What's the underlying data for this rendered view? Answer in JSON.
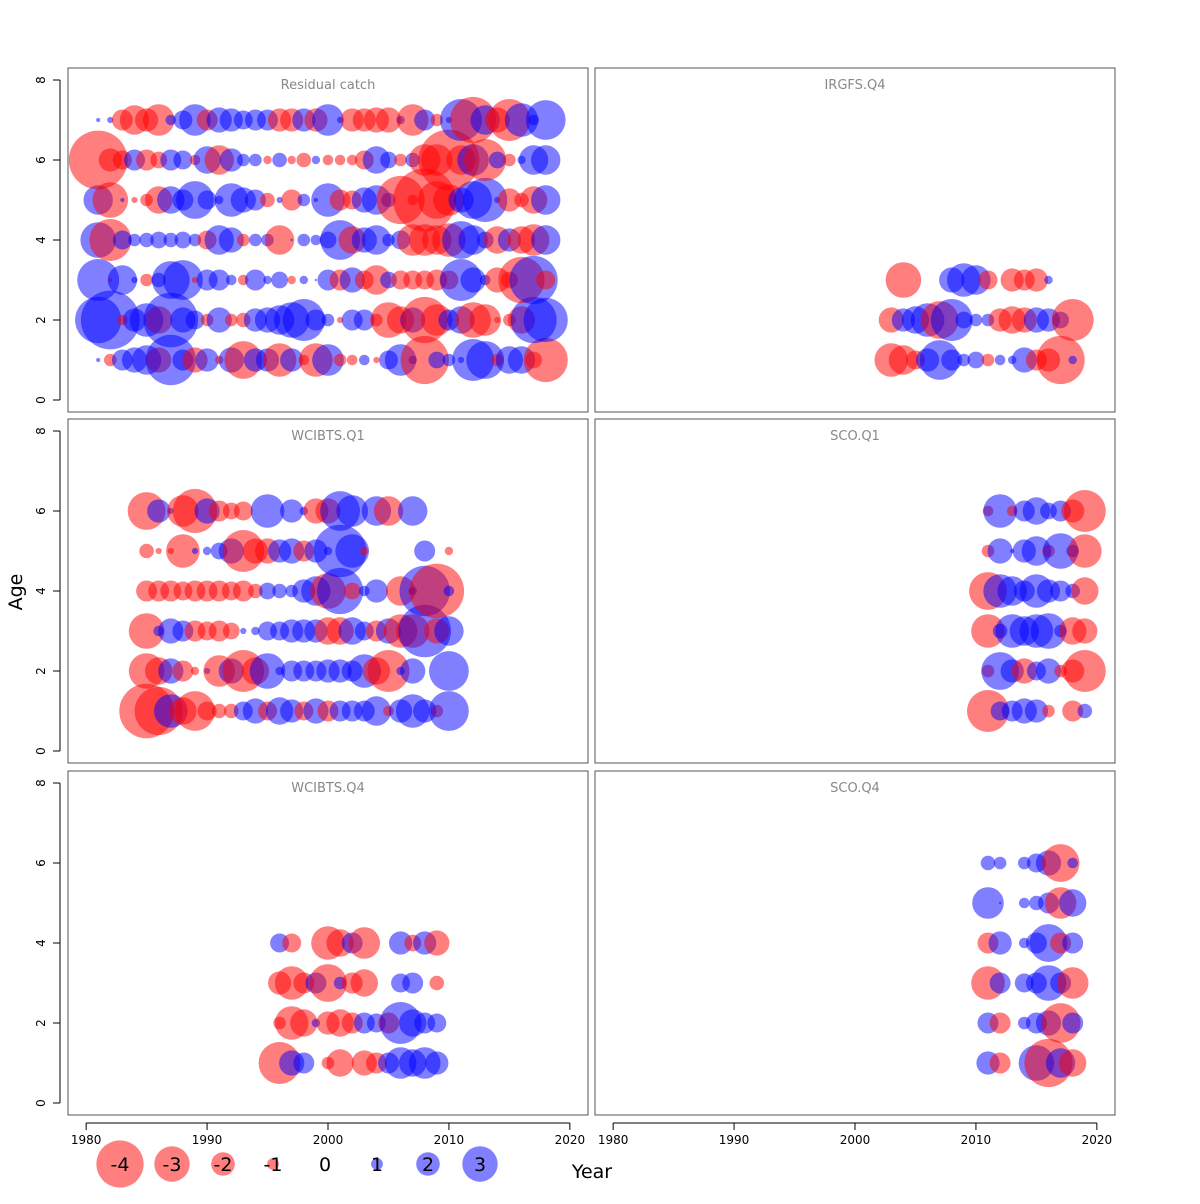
{
  "chart_data": {
    "type": "scatter",
    "subtype": "bubble-residual-grid",
    "xlabel": "Year",
    "ylabel": "Age",
    "xlim": [
      1978.5,
      2021.5
    ],
    "ylim": [
      -0.3,
      8.3
    ],
    "x_ticks": [
      1980,
      1990,
      2000,
      2010,
      2020
    ],
    "y_ticks": [
      0,
      2,
      4,
      6,
      8
    ],
    "colors": {
      "positive": "#0000ff",
      "negative": "#ff0000",
      "opacity": 0.5
    },
    "legend": {
      "position": "bottom-left",
      "entries": [
        {
          "label": "-4",
          "value": -4
        },
        {
          "label": "-3",
          "value": -3
        },
        {
          "label": "-2",
          "value": -2
        },
        {
          "label": "-1",
          "value": -1
        },
        {
          "label": "0",
          "value": 0
        },
        {
          "label": "1",
          "value": 1
        },
        {
          "label": "2",
          "value": 2
        },
        {
          "label": "3",
          "value": 3
        }
      ]
    },
    "panels": [
      {
        "title": "Residual catch",
        "ages": [
          1,
          2,
          3,
          4,
          5,
          6,
          7
        ],
        "years": [
          1981,
          1982,
          1983,
          1984,
          1985,
          1986,
          1987,
          1988,
          1989,
          1990,
          1991,
          1992,
          1993,
          1994,
          1995,
          1996,
          1997,
          1998,
          1999,
          2000,
          2001,
          2002,
          2003,
          2004,
          2005,
          2006,
          2007,
          2008,
          2009,
          2010,
          2011,
          2012,
          2013,
          2014,
          2015,
          2016,
          2017,
          2018
        ],
        "residuals": [
          [
            0.2,
            -0.6,
            1.0,
            1.2,
            1.4,
            -1.2,
            2.4,
            1.0,
            -1.2,
            1.1,
            -0.4,
            1.2,
            -1.8,
            1.1,
            1.1,
            -1.6,
            1.1,
            -0.5,
            -1.6,
            1.5,
            -0.6,
            -0.5,
            0.5,
            -0.3,
            0.9,
            1.5,
            0.4,
            -2.3,
            0.8,
            0.6,
            0.3,
            2.0,
            1.8,
            -0.6,
            1.3,
            1.3,
            -0.8,
            -2.1
          ],
          [
            2.2,
            2.8,
            -0.5,
            1.1,
            1.6,
            -1.3,
            2.6,
            1.2,
            0.9,
            -0.6,
            1.2,
            -0.6,
            -0.7,
            1.1,
            1.2,
            1.4,
            1.7,
            2.0,
            1.0,
            0.6,
            -0.3,
            1.0,
            1.0,
            -0.6,
            -1.7,
            -1.3,
            1.2,
            -2.2,
            -1.5,
            1.0,
            1.3,
            -1.7,
            -1.5,
            -0.3,
            -0.6,
            -1.3,
            2.2,
            2.1
          ],
          [
            2.0,
            -0.2,
            1.4,
            0.3,
            -0.6,
            0.7,
            1.8,
            1.9,
            -0.3,
            1.0,
            1.0,
            0.5,
            -0.5,
            1.0,
            0.4,
            0.8,
            -0.4,
            0.4,
            0.1,
            1.0,
            -1.0,
            1.2,
            -0.9,
            -1.4,
            0.8,
            -0.9,
            -0.9,
            -0.9,
            -1.0,
            -0.9,
            2.0,
            1.2,
            0.5,
            -1.2,
            -0.8,
            -2.2,
            2.3,
            -0.9
          ],
          [
            1.7,
            -2.0,
            0.9,
            0.6,
            0.7,
            0.8,
            0.7,
            0.8,
            0.6,
            -0.9,
            1.4,
            1.2,
            -0.6,
            0.6,
            0.6,
            -1.4,
            0.1,
            0.6,
            0.5,
            0.8,
            1.9,
            -1.3,
            1.2,
            1.4,
            0.6,
            0.9,
            -1.5,
            -1.5,
            -1.4,
            -1.6,
            1.8,
            1.4,
            0.8,
            -1.3,
            1.1,
            -1.3,
            -1.5,
            1.4
          ],
          [
            1.4,
            -1.7,
            0.2,
            -0.3,
            -0.6,
            -1.3,
            1.3,
            1.0,
            1.8,
            0.9,
            0.4,
            1.6,
            1.2,
            1.0,
            -0.7,
            0.3,
            -1.0,
            0.6,
            0.2,
            1.6,
            -1.0,
            -0.9,
            1.2,
            1.4,
            0.7,
            -2.3,
            -0.5,
            -3.0,
            -1.8,
            -1.5,
            1.2,
            1.8,
            2.1,
            0.3,
            -1.1,
            -0.7,
            -1.3,
            1.4
          ],
          [
            -2.8,
            -1.1,
            -0.9,
            1.0,
            -1.0,
            -0.8,
            1.0,
            0.9,
            -0.5,
            1.3,
            -1.4,
            1.1,
            0.6,
            0.6,
            -0.4,
            0.7,
            -0.4,
            -0.7,
            0.4,
            -0.5,
            -0.5,
            -0.5,
            -0.9,
            1.3,
            0.8,
            -0.6,
            0.7,
            -1.5,
            -1.5,
            -2.9,
            -1.4,
            1.5,
            -2.0,
            0.8,
            -0.6,
            0.4,
            1.4,
            1.4
          ],
          [
            0.2,
            0.3,
            -1.0,
            -1.4,
            -1.1,
            -1.5,
            0.5,
            0.9,
            1.5,
            -1.0,
            1.2,
            1.1,
            0.9,
            1.0,
            1.0,
            -1.1,
            -1.1,
            1.1,
            -1.1,
            1.5,
            0.3,
            -1.1,
            -1.1,
            -1.2,
            -1.2,
            0.4,
            -1.5,
            1.0,
            -0.6,
            0.3,
            2.0,
            -2.2,
            1.4,
            -1.2,
            -2.0,
            1.6,
            0.5,
            1.9
          ]
        ]
      },
      {
        "title": "IRGFS.Q4",
        "ages": [
          1,
          2,
          3
        ],
        "years": [
          2003,
          2004,
          2005,
          2006,
          2007,
          2008,
          2009,
          2010,
          2011,
          2012,
          2013,
          2014,
          2015,
          2016,
          2017,
          2018
        ],
        "residuals": [
          [
            -1.6,
            -1.4,
            -0.9,
            1.1,
            1.9,
            1.0,
            0.6,
            0.8,
            -0.6,
            0.5,
            0.4,
            1.2,
            -1.0,
            -1.1,
            -2.3,
            0.4
          ],
          [
            -1.2,
            1.1,
            1.3,
            1.6,
            -1.8,
            2.0,
            0.8,
            0.6,
            0.6,
            -1.1,
            -1.3,
            -1.2,
            1.2,
            1.1,
            0.8,
            -2.0
          ],
          [
            null,
            -1.7,
            null,
            null,
            null,
            1.2,
            1.6,
            1.4,
            -0.9,
            null,
            -1.1,
            -1.0,
            -1.1,
            0.4,
            null,
            null
          ]
        ]
      },
      {
        "title": "WCIBTS.Q1",
        "ages": [
          1,
          2,
          3,
          4,
          5,
          6
        ],
        "years": [
          1985,
          1986,
          1987,
          1988,
          1989,
          1990,
          1991,
          1992,
          1993,
          1994,
          1995,
          1996,
          1997,
          1998,
          1999,
          2000,
          2001,
          2002,
          2003,
          2004,
          2005,
          2006,
          2007,
          2008,
          2009,
          2010
        ],
        "residuals": [
          [
            -2.6,
            -2.3,
            1.6,
            -1.3,
            -1.9,
            -0.9,
            -0.7,
            -0.7,
            0.9,
            1.2,
            -0.9,
            1.3,
            1.1,
            -0.9,
            1.2,
            -1.0,
            1.0,
            1.0,
            1.0,
            1.4,
            -0.5,
            1.1,
            1.6,
            1.1,
            -0.6,
            1.9
          ],
          [
            -1.7,
            -1.3,
            1.2,
            -1.0,
            -0.4,
            0.3,
            -1.5,
            1.2,
            -2.0,
            -1.3,
            1.7,
            0.4,
            1.0,
            1.0,
            1.0,
            1.1,
            1.1,
            1.0,
            1.6,
            -1.3,
            -2.0,
            0.4,
            1.2,
            null,
            null,
            1.9
          ],
          [
            -1.7,
            0.5,
            1.2,
            1.0,
            -1.0,
            -0.9,
            -1.0,
            -0.8,
            0.3,
            0.4,
            0.9,
            0.9,
            1.1,
            1.1,
            1.1,
            -1.3,
            -1.3,
            1.3,
            0.9,
            -1.0,
            1.2,
            -1.6,
            -1.6,
            2.5,
            -1.2,
            1.4
          ],
          [
            -1.0,
            -1.0,
            -1.0,
            -0.9,
            -1.0,
            -1.0,
            -1.0,
            -0.9,
            -1.0,
            -0.7,
            0.8,
            0.7,
            0.6,
            1.1,
            1.4,
            -1.7,
            2.2,
            -0.8,
            0.5,
            1.1,
            null,
            -1.4,
            0.4,
            2.4,
            -2.6,
            0.5
          ],
          [
            -0.7,
            -0.3,
            -0.3,
            -1.6,
            0.3,
            0.4,
            0.8,
            1.2,
            -2.0,
            -1.2,
            -1.2,
            1.1,
            1.2,
            -1.0,
            1.1,
            0.4,
            2.5,
            1.6,
            -0.4,
            null,
            null,
            null,
            null,
            1.0,
            null,
            -0.4
          ],
          [
            -1.8,
            1.1,
            0.3,
            -1.5,
            -2.1,
            1.2,
            -1.0,
            -0.8,
            -0.9,
            null,
            1.6,
            null,
            1.1,
            0.4,
            -1.2,
            -1.2,
            1.9,
            1.5,
            null,
            1.4,
            -1.4,
            null,
            1.4,
            null,
            null,
            null
          ]
        ]
      },
      {
        "title": "SCO.Q1",
        "ages": [
          1,
          2,
          3,
          4,
          5,
          6
        ],
        "years": [
          2011,
          2012,
          2013,
          2014,
          2015,
          2016,
          2017,
          2018,
          2019
        ],
        "residuals": [
          [
            -2.0,
            0.9,
            1.0,
            1.2,
            1.1,
            -0.6,
            null,
            -1.0,
            0.7
          ],
          [
            -0.6,
            1.8,
            1.1,
            -1.2,
            0.9,
            1.2,
            -0.6,
            -1.1,
            -2.0
          ],
          [
            -1.6,
            0.7,
            1.6,
            1.4,
            1.6,
            1.7,
            0.6,
            -1.3,
            -1.2
          ],
          [
            -1.8,
            1.6,
            1.4,
            1.0,
            1.6,
            1.1,
            1.0,
            0.7,
            -1.3
          ],
          [
            -0.6,
            1.2,
            0.2,
            1.1,
            1.4,
            -0.6,
            1.7,
            0.6,
            -1.6
          ],
          [
            -0.5,
            1.6,
            -0.5,
            1.0,
            1.3,
            0.8,
            1.0,
            -1.1,
            -2.0
          ]
        ]
      },
      {
        "title": "WCIBTS.Q4",
        "ages": [
          1,
          2,
          3,
          4
        ],
        "years": [
          1996,
          1997,
          1998,
          1999,
          2000,
          2001,
          2002,
          2003,
          2004,
          2005,
          2006,
          2007,
          2008,
          2009
        ],
        "residuals": [
          [
            -2.0,
            1.2,
            1.0,
            null,
            -0.6,
            -1.3,
            null,
            -1.2,
            -1.0,
            1.0,
            1.5,
            1.3,
            1.5,
            1.1
          ],
          [
            -0.6,
            -1.6,
            -1.3,
            0.4,
            -1.1,
            -1.3,
            -1.0,
            1.0,
            0.9,
            -1.0,
            2.0,
            1.3,
            1.0,
            0.9
          ],
          [
            -1.1,
            -1.6,
            -1.0,
            1.0,
            -1.8,
            0.6,
            -1.0,
            -1.3,
            null,
            null,
            0.9,
            1.0,
            null,
            -0.7
          ],
          [
            0.9,
            -0.9,
            null,
            null,
            -1.6,
            -1.3,
            1.0,
            -1.5,
            null,
            null,
            1.1,
            -0.8,
            1.1,
            -1.2
          ]
        ]
      },
      {
        "title": "SCO.Q4",
        "ages": [
          1,
          2,
          3,
          4,
          5,
          6
        ],
        "years": [
          2011,
          2012,
          2013,
          2014,
          2015,
          2016,
          2017,
          2018
        ],
        "residuals": [
          [
            1.1,
            -1.0,
            null,
            null,
            1.7,
            -2.3,
            1.4,
            -1.3
          ],
          [
            1.0,
            -1.0,
            null,
            0.6,
            1.0,
            1.2,
            -1.9,
            1.0
          ],
          [
            -1.6,
            1.0,
            null,
            0.9,
            1.0,
            1.7,
            1.0,
            -1.5
          ],
          [
            -1.0,
            1.1,
            null,
            0.5,
            1.0,
            1.8,
            -1.0,
            1.0
          ],
          [
            1.5,
            0.1,
            null,
            0.5,
            0.7,
            1.0,
            -1.5,
            1.3
          ],
          [
            0.7,
            0.6,
            null,
            0.6,
            0.9,
            1.2,
            -1.8,
            0.5
          ]
        ]
      }
    ]
  }
}
